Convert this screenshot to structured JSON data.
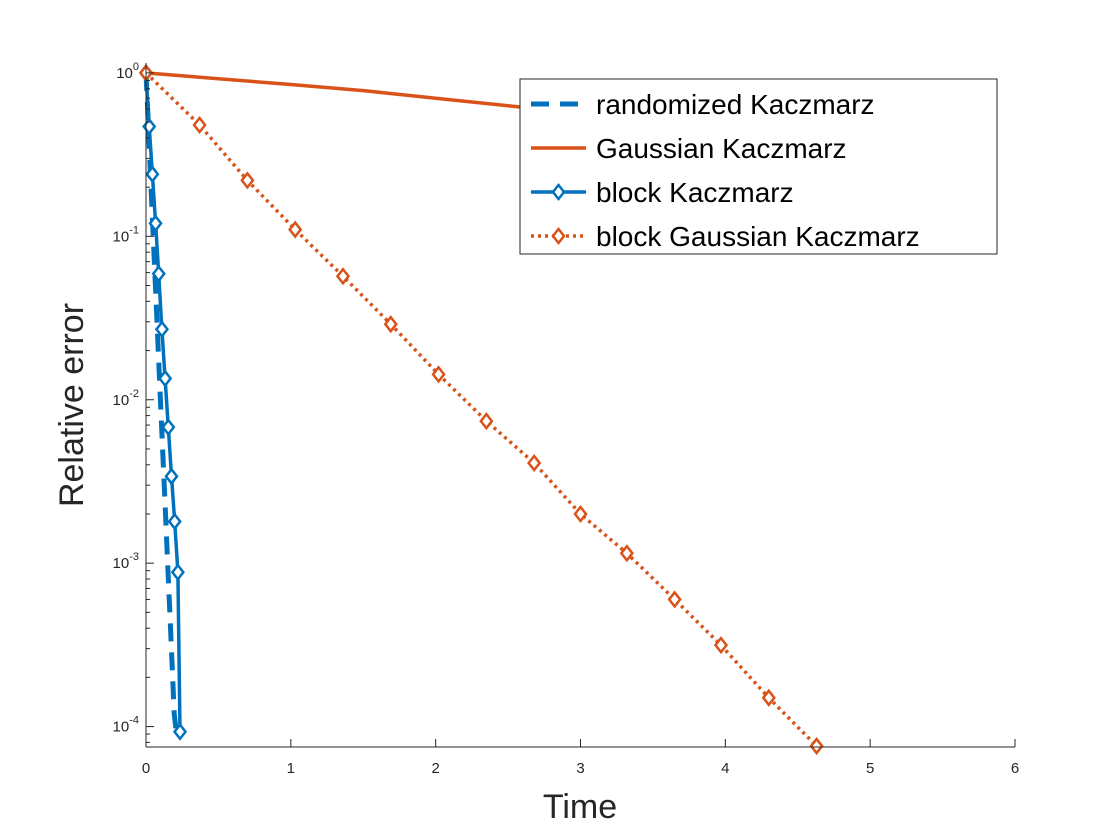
{
  "chart_data": {
    "type": "line",
    "title": "",
    "xlabel": "Time",
    "ylabel": "Relative error",
    "xlim": [
      0,
      6
    ],
    "ylim": [
      7.5e-05,
      1.15
    ],
    "yscale": "log",
    "grid": false,
    "legend_position": "top-right",
    "x_ticks": [
      "0",
      "1",
      "2",
      "3",
      "4",
      "5",
      "6"
    ],
    "y_ticks": [
      {
        "base": "10",
        "exp": "0",
        "value": 1
      },
      {
        "base": "10",
        "exp": "-1",
        "value": 0.1
      },
      {
        "base": "10",
        "exp": "-2",
        "value": 0.01
      },
      {
        "base": "10",
        "exp": "-3",
        "value": 0.001
      },
      {
        "base": "10",
        "exp": "-4",
        "value": 0.0001
      }
    ],
    "series": [
      {
        "name": "randomized Kaczmarz",
        "color": "#0072BD",
        "style": "dashed",
        "marker": "none",
        "x": [
          0.0,
          0.015,
          0.03,
          0.045,
          0.06,
          0.075,
          0.09,
          0.105,
          0.12,
          0.135,
          0.15,
          0.165,
          0.18,
          0.195,
          0.21
        ],
        "y": [
          1.0,
          0.5,
          0.25,
          0.125,
          0.0625,
          0.0312,
          0.0156,
          0.0078,
          0.0039,
          0.00195,
          0.00098,
          0.00049,
          0.00024,
          0.00012,
          9.16e-05
        ]
      },
      {
        "name": "Gaussian Kaczmarz",
        "color": "#D95319",
        "style": "solid",
        "marker": "none",
        "x": [
          0.0,
          0.5,
          1.0,
          1.5,
          2.0,
          2.5,
          2.65
        ],
        "y": [
          1.0,
          0.92,
          0.85,
          0.78,
          0.7,
          0.63,
          0.61
        ]
      },
      {
        "name": "block Kaczmarz",
        "color": "#0072BD",
        "style": "solid",
        "marker": "diamond",
        "x": [
          0.0,
          0.022,
          0.044,
          0.066,
          0.088,
          0.11,
          0.132,
          0.154,
          0.176,
          0.198,
          0.22,
          0.235
        ],
        "y": [
          1.0,
          0.47,
          0.24,
          0.12,
          0.059,
          0.027,
          0.0135,
          0.0068,
          0.0034,
          0.0018,
          0.00088,
          9.3e-05
        ]
      },
      {
        "name": "block Gaussian Kaczmarz",
        "color": "#D95319",
        "style": "dotted",
        "marker": "diamond",
        "x": [
          0.0,
          0.37,
          0.7,
          1.03,
          1.36,
          1.69,
          2.02,
          2.35,
          2.68,
          3.0,
          3.32,
          3.65,
          3.97,
          4.3,
          4.63
        ],
        "y": [
          1.0,
          0.48,
          0.22,
          0.11,
          0.057,
          0.029,
          0.0143,
          0.0074,
          0.0041,
          0.002,
          0.00115,
          0.0006,
          0.000315,
          0.00015,
          7.6e-05
        ]
      }
    ]
  }
}
